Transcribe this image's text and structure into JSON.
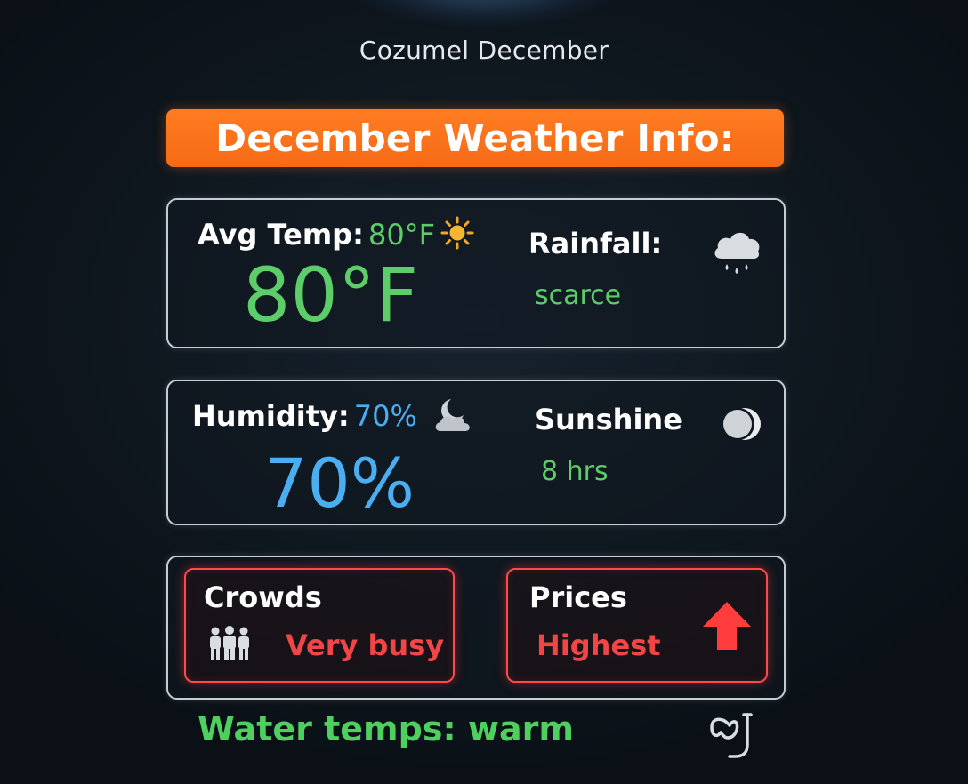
{
  "page": {
    "title": "Cozumel December"
  },
  "banner": {
    "text": "December Weather Info:",
    "color": "#f96f1c"
  },
  "temperature": {
    "label": "Avg Temp:",
    "inline_value": "80°F",
    "big_value": "80°F",
    "icon": "sun-icon"
  },
  "rainfall": {
    "label": "Rainfall:",
    "value": "scarce",
    "icon": "rain-cloud-icon"
  },
  "humidity": {
    "label": "Humidity:",
    "inline_value": "70%",
    "big_value": "70%",
    "icon": "moon-cloud-icon"
  },
  "sunshine": {
    "label": "Sunshine",
    "value": "8 hrs",
    "icon": "eclipse-icon"
  },
  "crowds": {
    "label": "Crowds",
    "value": "Very busy",
    "icon": "people-icon"
  },
  "prices": {
    "label": "Prices",
    "value": "Highest",
    "icon": "up-arrow-icon"
  },
  "water": {
    "text": "Water temps: warm",
    "icon": "snorkel-mask-icon"
  },
  "colors": {
    "green": "#5ccd68",
    "blue": "#4aaef0",
    "red": "#f24545",
    "orange": "#f96f1c",
    "panel_border": "#c7ccd3"
  }
}
